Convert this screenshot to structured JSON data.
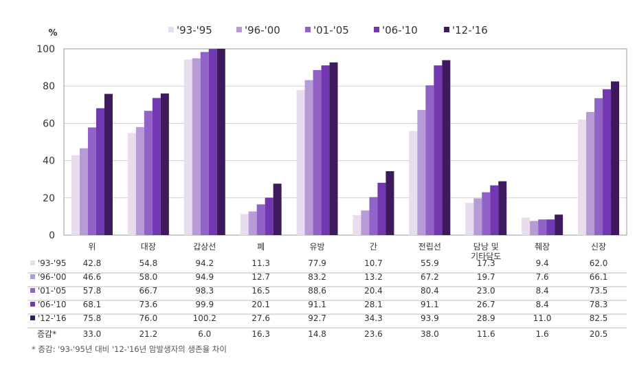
{
  "chart_data": {
    "type": "bar",
    "unit": "%",
    "ylim": [
      0,
      100
    ],
    "yticks": [
      0,
      20,
      40,
      60,
      80,
      100
    ],
    "grid": true,
    "legend_position": "top",
    "categories": [
      [
        "위"
      ],
      [
        "대장"
      ],
      [
        "갑상선"
      ],
      [
        "폐"
      ],
      [
        "유방"
      ],
      [
        "간"
      ],
      [
        "전립선"
      ],
      [
        "담낭 및",
        "기타담도"
      ],
      [
        "췌장"
      ],
      [
        "신장"
      ]
    ],
    "series": [
      {
        "name": "'93-'95",
        "color": "#e8dcef",
        "values": [
          42.8,
          54.8,
          94.2,
          11.3,
          77.9,
          10.7,
          55.9,
          17.3,
          9.4,
          62.0
        ]
      },
      {
        "name": "'96-'00",
        "color": "#b79bd6",
        "values": [
          46.6,
          58.0,
          94.9,
          12.7,
          83.2,
          13.2,
          67.2,
          19.7,
          7.6,
          66.1
        ]
      },
      {
        "name": "'01-'05",
        "color": "#9163c6",
        "values": [
          57.8,
          66.7,
          98.3,
          16.5,
          88.6,
          20.4,
          80.4,
          23.0,
          8.4,
          73.5
        ]
      },
      {
        "name": "'06-'10",
        "color": "#7138b0",
        "values": [
          68.1,
          73.6,
          99.9,
          20.1,
          91.1,
          28.1,
          91.1,
          26.7,
          8.4,
          78.3
        ]
      },
      {
        "name": "'12-'16",
        "color": "#3d1a5e",
        "values": [
          75.8,
          76.0,
          100.2,
          27.6,
          92.7,
          34.3,
          93.9,
          28.9,
          11.0,
          82.5
        ]
      }
    ],
    "diff_row": {
      "label": "증감*",
      "values": [
        "33.0",
        "21.2",
        "6.0",
        "16.3",
        "14.8",
        "23.6",
        "38.0",
        "11.6",
        "1.6",
        "20.5"
      ]
    }
  },
  "table_values": [
    [
      "42.8",
      "54.8",
      "94.2",
      "11.3",
      "77.9",
      "10.7",
      "55.9",
      "17.3",
      "9.4",
      "62.0"
    ],
    [
      "46.6",
      "58.0",
      "94.9",
      "12.7",
      "83.2",
      "13.2",
      "67.2",
      "19.7",
      "7.6",
      "66.1"
    ],
    [
      "57.8",
      "66.7",
      "98.3",
      "16.5",
      "88.6",
      "20.4",
      "80.4",
      "23.0",
      "8.4",
      "73.5"
    ],
    [
      "68.1",
      "73.6",
      "99.9",
      "20.1",
      "91.1",
      "28.1",
      "91.1",
      "26.7",
      "8.4",
      "78.3"
    ],
    [
      "75.8",
      "76.0",
      "100.2",
      "27.6",
      "92.7",
      "34.3",
      "93.9",
      "28.9",
      "11.0",
      "82.5"
    ]
  ],
  "footnote": "* 증감: '93-'95년 대비 '12-'16년 암발생자의 생존율 차이"
}
